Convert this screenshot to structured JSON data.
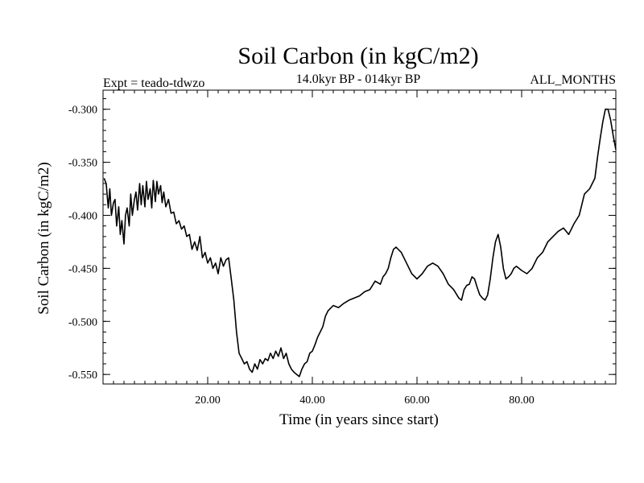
{
  "chart_data": {
    "type": "line",
    "title": "Soil Carbon (in kgC/m2)",
    "subtitle_left": "Expt = teado-tdwzo",
    "subtitle_center": "14.0kyr BP - 014kyr BP",
    "subtitle_right": "ALL_MONTHS",
    "xlabel": "Time (in years since start)",
    "ylabel": "Soil Carbon (in kgC/m2)",
    "xlim": [
      0,
      98
    ],
    "ylim": [
      -0.559,
      -0.282
    ],
    "x_ticks": [
      20,
      40,
      60,
      80
    ],
    "x_tick_labels": [
      "20.00",
      "40.00",
      "60.00",
      "80.00"
    ],
    "y_ticks": [
      -0.3,
      -0.35,
      -0.4,
      -0.45,
      -0.5,
      -0.55
    ],
    "y_tick_labels": [
      "-0.300",
      "-0.350",
      "-0.400",
      "-0.450",
      "-0.500",
      "-0.550"
    ],
    "series": [
      {
        "name": "Soil Carbon",
        "color": "#000000",
        "x": [
          0.2,
          0.6,
          1.0,
          1.3,
          1.6,
          2.0,
          2.3,
          2.6,
          3.0,
          3.3,
          3.6,
          4.0,
          4.3,
          4.6,
          5.0,
          5.3,
          5.6,
          6.0,
          6.3,
          6.6,
          7.0,
          7.3,
          7.6,
          8.0,
          8.3,
          8.6,
          9.0,
          9.3,
          9.6,
          10.0,
          10.3,
          10.6,
          11.0,
          11.3,
          11.6,
          12.0,
          12.5,
          13.0,
          13.5,
          14.0,
          14.5,
          15.0,
          15.5,
          16.0,
          16.5,
          17.0,
          17.5,
          18.0,
          18.5,
          19.0,
          19.5,
          20.0,
          20.5,
          21.0,
          21.5,
          22.0,
          22.5,
          23.0,
          23.5,
          24.0,
          24.5,
          25.0,
          25.5,
          26.0,
          26.5,
          27.0,
          27.5,
          28.0,
          28.5,
          29.0,
          29.5,
          30.0,
          30.5,
          31.0,
          31.5,
          32.0,
          32.5,
          33.0,
          33.5,
          34.0,
          34.5,
          35.0,
          35.5,
          36.0,
          36.5,
          37.0,
          37.5,
          38.0,
          38.5,
          39.0,
          39.5,
          40.0,
          40.5,
          41.0,
          41.5,
          42.0,
          42.5,
          43.0,
          44.0,
          45.0,
          46.0,
          47.0,
          48.0,
          49.0,
          50.0,
          51.0,
          52.0,
          53.0,
          53.5,
          54.0,
          54.5,
          55.0,
          55.5,
          56.0,
          57.0,
          58.0,
          59.0,
          60.0,
          61.0,
          62.0,
          63.0,
          64.0,
          65.0,
          66.0,
          67.0,
          68.0,
          68.5,
          69.0,
          69.5,
          70.0,
          70.5,
          71.0,
          71.5,
          72.0,
          72.5,
          73.0,
          73.5,
          74.0,
          74.5,
          75.0,
          75.5,
          76.0,
          76.5,
          77.0,
          77.5,
          78.0,
          78.5,
          79.0,
          80.0,
          81.0,
          82.0,
          83.0,
          84.0,
          85.0,
          86.0,
          87.0,
          88.0,
          89.0,
          90.0,
          91.0,
          92.0,
          93.0,
          94.0,
          94.5,
          95.0,
          95.5,
          96.0,
          96.5,
          97.0,
          97.5,
          98.0
        ],
        "values": [
          -0.365,
          -0.37,
          -0.393,
          -0.375,
          -0.4,
          -0.388,
          -0.385,
          -0.41,
          -0.392,
          -0.418,
          -0.405,
          -0.427,
          -0.4,
          -0.393,
          -0.41,
          -0.38,
          -0.4,
          -0.385,
          -0.378,
          -0.395,
          -0.37,
          -0.39,
          -0.372,
          -0.392,
          -0.368,
          -0.385,
          -0.375,
          -0.393,
          -0.367,
          -0.387,
          -0.368,
          -0.38,
          -0.372,
          -0.388,
          -0.378,
          -0.392,
          -0.385,
          -0.398,
          -0.397,
          -0.408,
          -0.405,
          -0.413,
          -0.41,
          -0.42,
          -0.418,
          -0.432,
          -0.425,
          -0.433,
          -0.42,
          -0.44,
          -0.435,
          -0.445,
          -0.44,
          -0.45,
          -0.445,
          -0.455,
          -0.44,
          -0.448,
          -0.442,
          -0.44,
          -0.46,
          -0.48,
          -0.51,
          -0.53,
          -0.535,
          -0.54,
          -0.538,
          -0.545,
          -0.548,
          -0.54,
          -0.545,
          -0.536,
          -0.54,
          -0.535,
          -0.537,
          -0.53,
          -0.535,
          -0.528,
          -0.533,
          -0.525,
          -0.535,
          -0.53,
          -0.54,
          -0.545,
          -0.548,
          -0.55,
          -0.552,
          -0.545,
          -0.54,
          -0.538,
          -0.53,
          -0.528,
          -0.522,
          -0.515,
          -0.51,
          -0.505,
          -0.495,
          -0.49,
          -0.485,
          -0.487,
          -0.483,
          -0.48,
          -0.478,
          -0.476,
          -0.472,
          -0.47,
          -0.462,
          -0.465,
          -0.458,
          -0.455,
          -0.45,
          -0.44,
          -0.432,
          -0.43,
          -0.435,
          -0.445,
          -0.455,
          -0.46,
          -0.455,
          -0.448,
          -0.445,
          -0.448,
          -0.455,
          -0.465,
          -0.47,
          -0.478,
          -0.48,
          -0.47,
          -0.466,
          -0.465,
          -0.458,
          -0.46,
          -0.468,
          -0.475,
          -0.478,
          -0.48,
          -0.475,
          -0.46,
          -0.44,
          -0.425,
          -0.418,
          -0.43,
          -0.45,
          -0.46,
          -0.458,
          -0.455,
          -0.45,
          -0.448,
          -0.452,
          -0.455,
          -0.45,
          -0.44,
          -0.435,
          -0.425,
          -0.42,
          -0.415,
          -0.412,
          -0.418,
          -0.408,
          -0.4,
          -0.38,
          -0.375,
          -0.365,
          -0.345,
          -0.328,
          -0.312,
          -0.3,
          -0.3,
          -0.31,
          -0.325,
          -0.338
        ]
      }
    ]
  }
}
